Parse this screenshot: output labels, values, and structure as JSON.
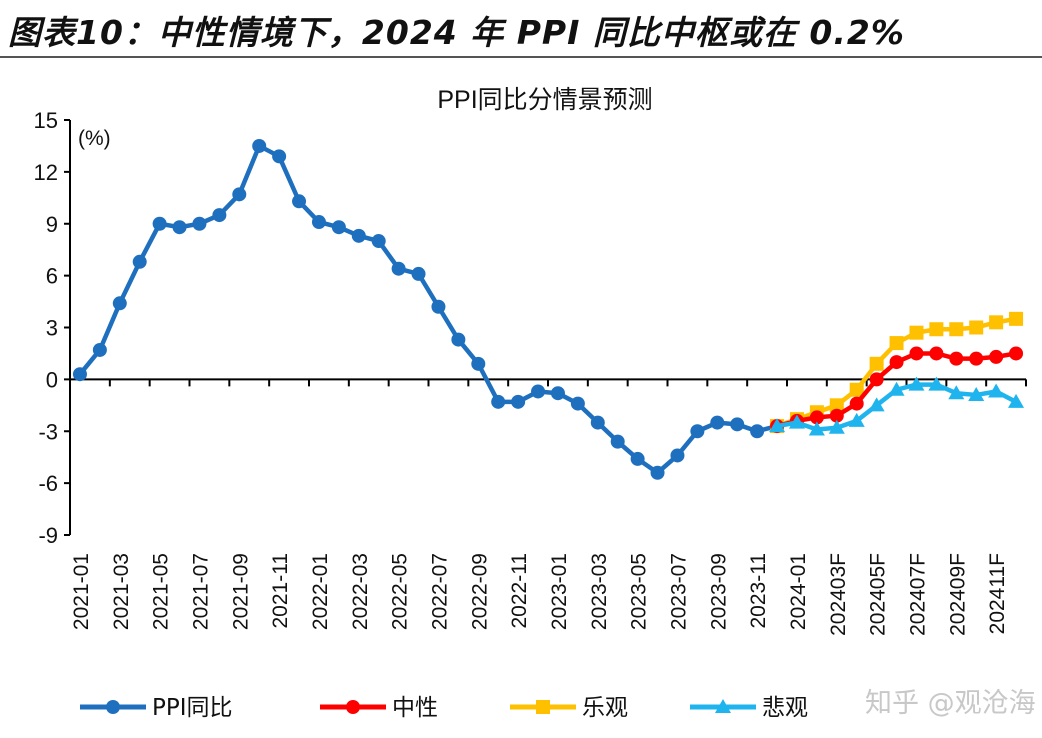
{
  "header": {
    "title": "图表10：中性情境下，2024 年 PPI 同比中枢或在 0.2%"
  },
  "watermark": "知乎 @观沧海",
  "chart_data": {
    "type": "line",
    "title": "PPI同比分情景预测",
    "ylabel": "(%)",
    "xlabel": "",
    "ylim": [
      -9,
      15
    ],
    "yticks": [
      15,
      12,
      9,
      6,
      3,
      0,
      -3,
      -6,
      -9
    ],
    "grid": false,
    "legend_position": "bottom",
    "categories": [
      "2021-01",
      "2021-02",
      "2021-03",
      "2021-04",
      "2021-05",
      "2021-06",
      "2021-07",
      "2021-08",
      "2021-09",
      "2021-10",
      "2021-11",
      "2021-12",
      "2022-01",
      "2022-02",
      "2022-03",
      "2022-04",
      "2022-05",
      "2022-06",
      "2022-07",
      "2022-08",
      "2022-09",
      "2022-10",
      "2022-11",
      "2022-12",
      "2023-01",
      "2023-02",
      "2023-03",
      "2023-04",
      "2023-05",
      "2023-06",
      "2023-07",
      "2023-08",
      "2023-09",
      "2023-10",
      "2023-11",
      "2023-12",
      "2024-01",
      "202402F",
      "202403F",
      "202404F",
      "202405F",
      "202406F",
      "202407F",
      "202408F",
      "202409F",
      "202410F",
      "202411F",
      "202412F"
    ],
    "tick_labels": [
      "2021-01",
      "2021-03",
      "2021-05",
      "2021-07",
      "2021-09",
      "2021-11",
      "2022-01",
      "2022-03",
      "2022-05",
      "2022-07",
      "2022-09",
      "2022-11",
      "2023-01",
      "2023-03",
      "2023-05",
      "2023-07",
      "2023-09",
      "2023-11",
      "2024-01",
      "202403F",
      "202405F",
      "202407F",
      "202409F",
      "202411F"
    ],
    "series": [
      {
        "name": "PPI同比",
        "color": "#1f6fbf",
        "marker": "circle",
        "values": [
          0.3,
          1.7,
          4.4,
          6.8,
          9.0,
          8.8,
          9.0,
          9.5,
          10.7,
          13.5,
          12.9,
          10.3,
          9.1,
          8.8,
          8.3,
          8.0,
          6.4,
          6.1,
          4.2,
          2.3,
          0.9,
          -1.3,
          -1.3,
          -0.7,
          -0.8,
          -1.4,
          -2.5,
          -3.6,
          -4.6,
          -5.4,
          -4.4,
          -3.0,
          -2.5,
          -2.6,
          -3.0,
          -2.7,
          null,
          null,
          null,
          null,
          null,
          null,
          null,
          null,
          null,
          null,
          null,
          null
        ]
      },
      {
        "name": "中性",
        "color": "#ff0000",
        "marker": "circle",
        "values": [
          null,
          null,
          null,
          null,
          null,
          null,
          null,
          null,
          null,
          null,
          null,
          null,
          null,
          null,
          null,
          null,
          null,
          null,
          null,
          null,
          null,
          null,
          null,
          null,
          null,
          null,
          null,
          null,
          null,
          null,
          null,
          null,
          null,
          null,
          null,
          -2.7,
          -2.4,
          -2.2,
          -2.1,
          -1.4,
          0.0,
          1.0,
          1.5,
          1.5,
          1.2,
          1.2,
          1.3,
          1.5
        ]
      },
      {
        "name": "乐观",
        "color": "#ffc000",
        "marker": "square",
        "values": [
          null,
          null,
          null,
          null,
          null,
          null,
          null,
          null,
          null,
          null,
          null,
          null,
          null,
          null,
          null,
          null,
          null,
          null,
          null,
          null,
          null,
          null,
          null,
          null,
          null,
          null,
          null,
          null,
          null,
          null,
          null,
          null,
          null,
          null,
          null,
          -2.7,
          -2.3,
          -1.9,
          -1.5,
          -0.6,
          0.9,
          2.1,
          2.7,
          2.9,
          2.9,
          3.0,
          3.3,
          3.5
        ]
      },
      {
        "name": "悲观",
        "color": "#1fb4ee",
        "marker": "triangle",
        "values": [
          null,
          null,
          null,
          null,
          null,
          null,
          null,
          null,
          null,
          null,
          null,
          null,
          null,
          null,
          null,
          null,
          null,
          null,
          null,
          null,
          null,
          null,
          null,
          null,
          null,
          null,
          null,
          null,
          null,
          null,
          null,
          null,
          null,
          null,
          null,
          -2.7,
          -2.5,
          -2.9,
          -2.8,
          -2.4,
          -1.5,
          -0.6,
          -0.3,
          -0.3,
          -0.8,
          -0.9,
          -0.7,
          -1.3
        ]
      }
    ]
  }
}
